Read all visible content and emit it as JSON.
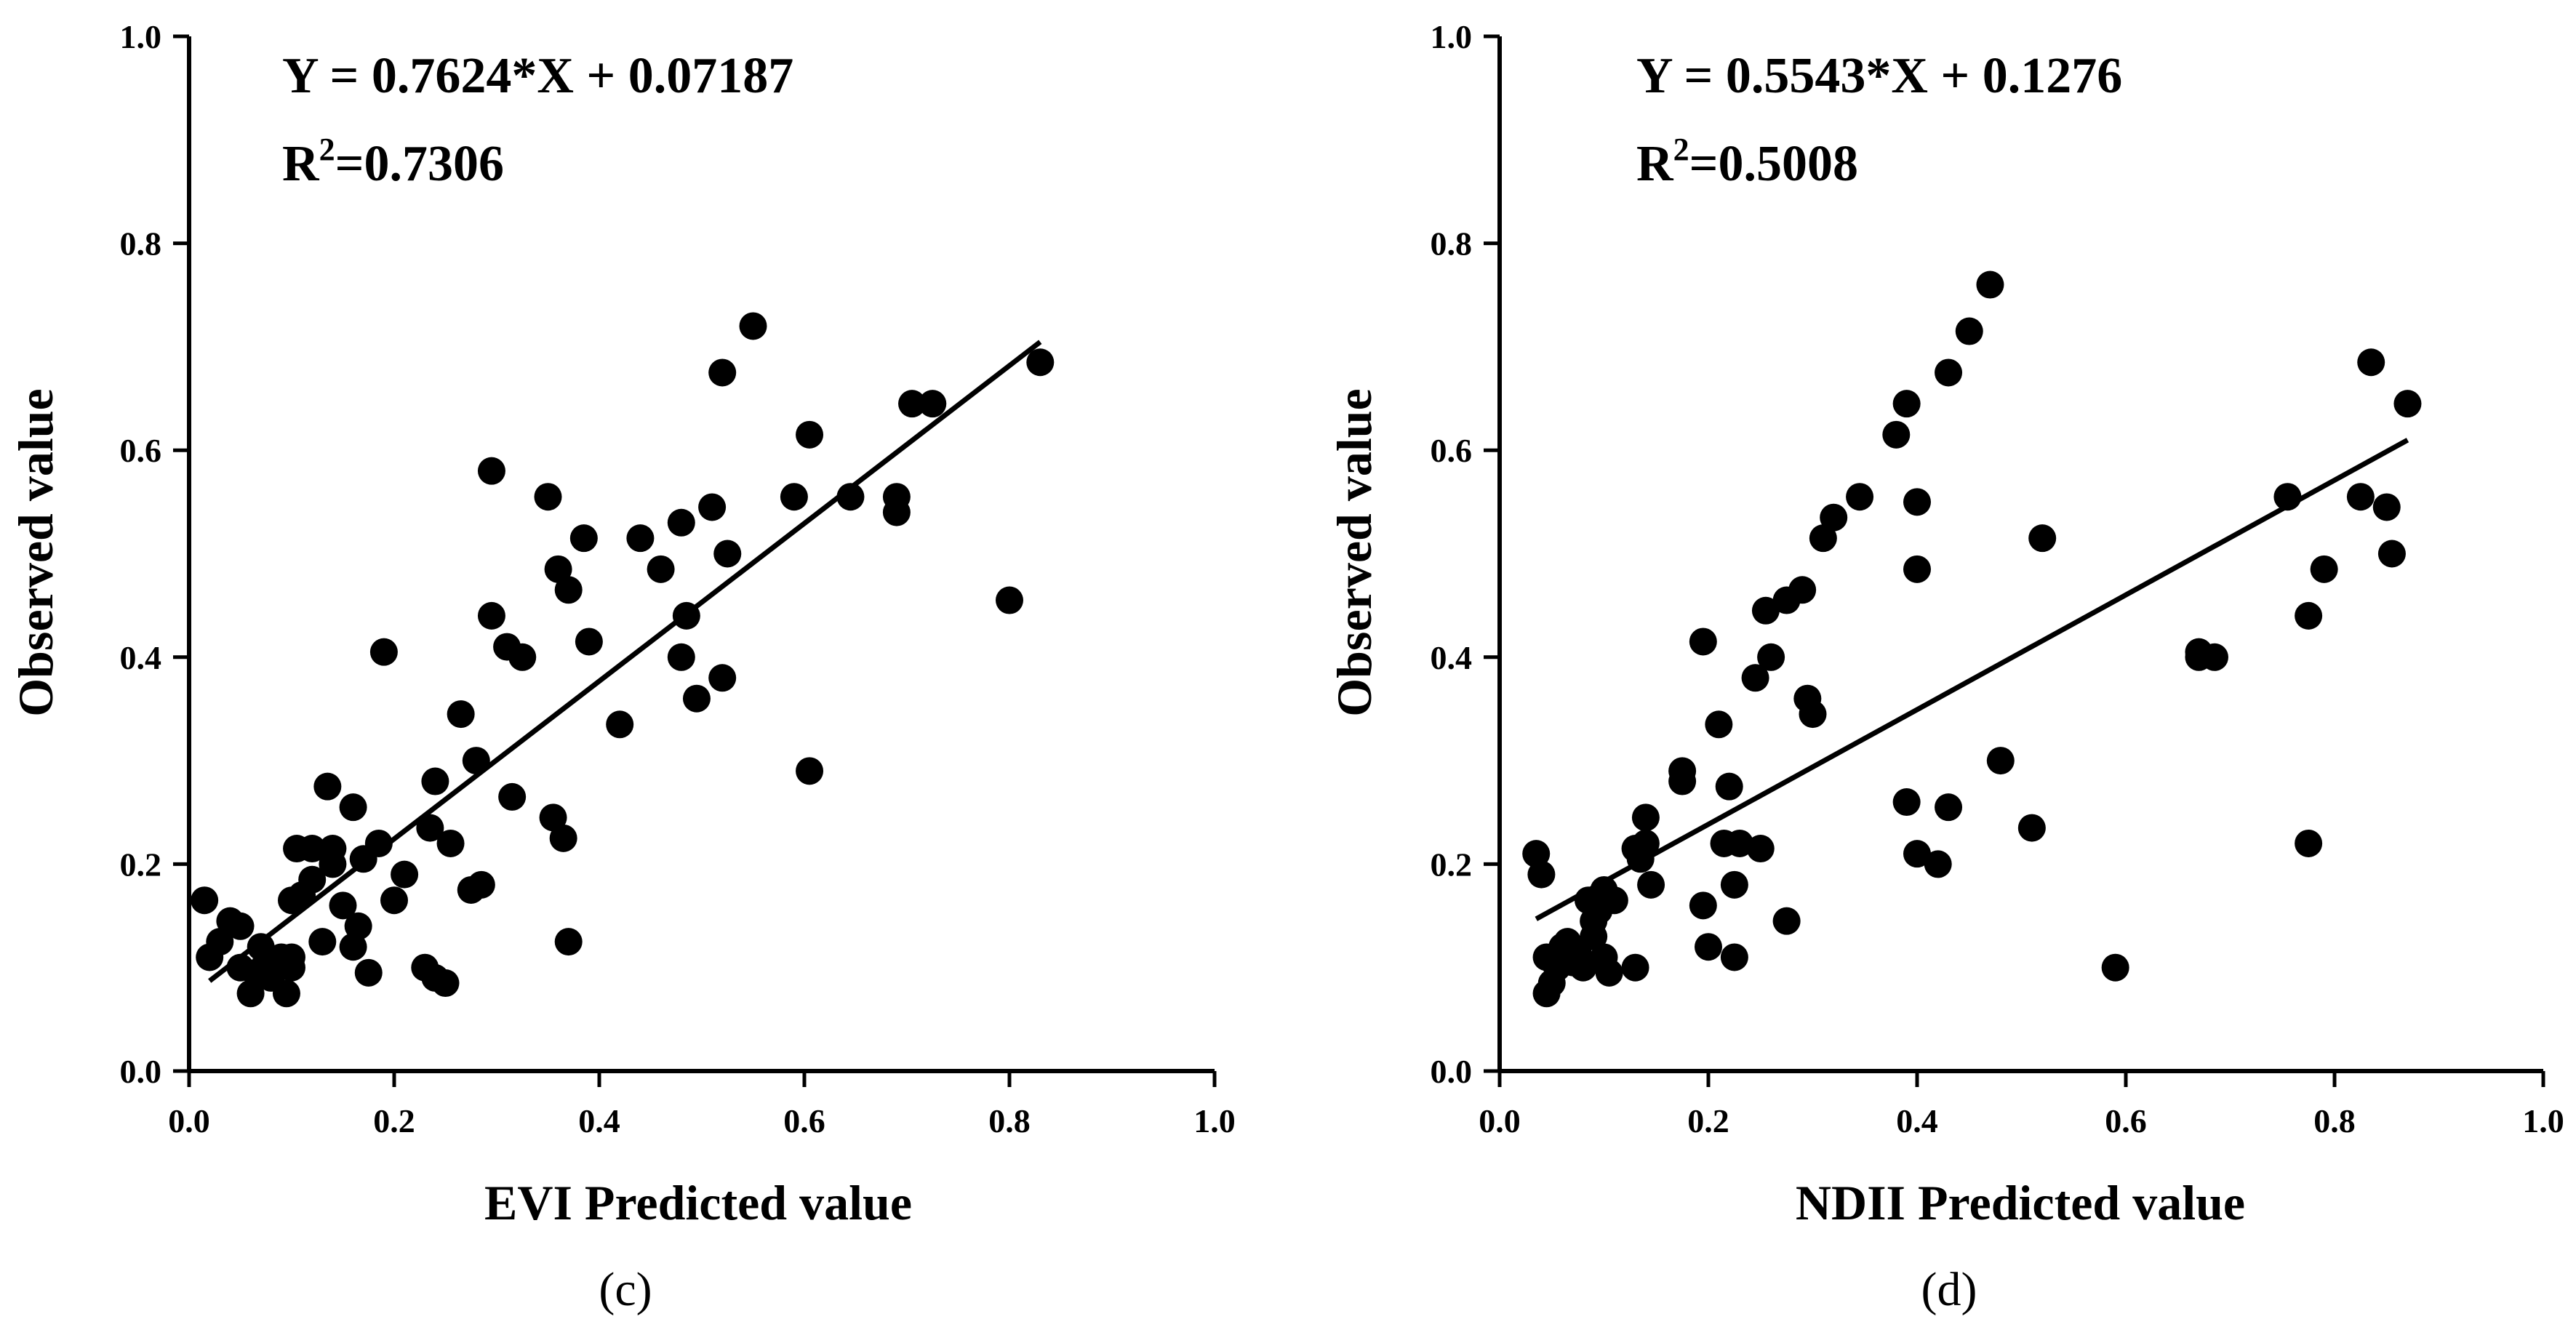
{
  "chart_data": [
    {
      "type": "scatter",
      "panel_label": "(c)",
      "xlabel": "EVI Predicted value",
      "ylabel": "Observed value",
      "xlim": [
        0.0,
        1.0
      ],
      "ylim": [
        0.0,
        1.0
      ],
      "x_ticks": [
        "0.0",
        "0.2",
        "0.4",
        "0.6",
        "0.8",
        "1.0"
      ],
      "y_ticks": [
        "0.0",
        "0.2",
        "0.4",
        "0.6",
        "0.8",
        "1.0"
      ],
      "grid": false,
      "equation": "Y = 0.7624*X + 0.07187",
      "r2_prefix": "R",
      "r2_sup": "2",
      "r2_value": "=0.7306",
      "fit": {
        "slope": 0.7624,
        "intercept": 0.07187,
        "x_range": [
          0.02,
          0.83
        ]
      },
      "points": [
        [
          0.015,
          0.165
        ],
        [
          0.02,
          0.11
        ],
        [
          0.03,
          0.125
        ],
        [
          0.04,
          0.145
        ],
        [
          0.05,
          0.14
        ],
        [
          0.05,
          0.1
        ],
        [
          0.06,
          0.075
        ],
        [
          0.065,
          0.095
        ],
        [
          0.07,
          0.12
        ],
        [
          0.075,
          0.105
        ],
        [
          0.08,
          0.09
        ],
        [
          0.09,
          0.11
        ],
        [
          0.095,
          0.075
        ],
        [
          0.1,
          0.1
        ],
        [
          0.1,
          0.11
        ],
        [
          0.1,
          0.165
        ],
        [
          0.105,
          0.215
        ],
        [
          0.11,
          0.17
        ],
        [
          0.12,
          0.185
        ],
        [
          0.12,
          0.215
        ],
        [
          0.13,
          0.125
        ],
        [
          0.135,
          0.275
        ],
        [
          0.14,
          0.2
        ],
        [
          0.14,
          0.215
        ],
        [
          0.15,
          0.16
        ],
        [
          0.16,
          0.12
        ],
        [
          0.16,
          0.255
        ],
        [
          0.165,
          0.14
        ],
        [
          0.17,
          0.205
        ],
        [
          0.175,
          0.095
        ],
        [
          0.185,
          0.22
        ],
        [
          0.19,
          0.405
        ],
        [
          0.2,
          0.165
        ],
        [
          0.21,
          0.19
        ],
        [
          0.23,
          0.1
        ],
        [
          0.235,
          0.235
        ],
        [
          0.24,
          0.09
        ],
        [
          0.24,
          0.28
        ],
        [
          0.25,
          0.085
        ],
        [
          0.255,
          0.22
        ],
        [
          0.265,
          0.345
        ],
        [
          0.275,
          0.175
        ],
        [
          0.28,
          0.3
        ],
        [
          0.285,
          0.18
        ],
        [
          0.295,
          0.44
        ],
        [
          0.295,
          0.58
        ],
        [
          0.31,
          0.41
        ],
        [
          0.315,
          0.265
        ],
        [
          0.325,
          0.4
        ],
        [
          0.35,
          0.555
        ],
        [
          0.355,
          0.245
        ],
        [
          0.36,
          0.485
        ],
        [
          0.365,
          0.225
        ],
        [
          0.37,
          0.465
        ],
        [
          0.37,
          0.125
        ],
        [
          0.385,
          0.515
        ],
        [
          0.39,
          0.415
        ],
        [
          0.42,
          0.335
        ],
        [
          0.44,
          0.515
        ],
        [
          0.46,
          0.485
        ],
        [
          0.48,
          0.53
        ],
        [
          0.48,
          0.4
        ],
        [
          0.485,
          0.44
        ],
        [
          0.495,
          0.36
        ],
        [
          0.51,
          0.545
        ],
        [
          0.52,
          0.38
        ],
        [
          0.52,
          0.675
        ],
        [
          0.525,
          0.5
        ],
        [
          0.55,
          0.72
        ],
        [
          0.59,
          0.555
        ],
        [
          0.605,
          0.615
        ],
        [
          0.605,
          0.29
        ],
        [
          0.645,
          0.555
        ],
        [
          0.69,
          0.555
        ],
        [
          0.69,
          0.54
        ],
        [
          0.705,
          0.645
        ],
        [
          0.725,
          0.645
        ],
        [
          0.8,
          0.455
        ],
        [
          0.83,
          0.685
        ]
      ]
    },
    {
      "type": "scatter",
      "panel_label": "(d)",
      "xlabel": "NDII Predicted value",
      "ylabel": "Observed value",
      "xlim": [
        0.0,
        1.0
      ],
      "ylim": [
        0.0,
        1.0
      ],
      "x_ticks": [
        "0.0",
        "0.2",
        "0.4",
        "0.6",
        "0.8",
        "1.0"
      ],
      "y_ticks": [
        "0.0",
        "0.2",
        "0.4",
        "0.6",
        "0.8",
        "1.0"
      ],
      "grid": false,
      "equation": "Y = 0.5543*X + 0.1276",
      "r2_prefix": "R",
      "r2_sup": "2",
      "r2_value": "=0.5008",
      "fit": {
        "slope": 0.5543,
        "intercept": 0.1276,
        "x_range": [
          0.035,
          0.87
        ]
      },
      "points": [
        [
          0.035,
          0.21
        ],
        [
          0.04,
          0.19
        ],
        [
          0.045,
          0.11
        ],
        [
          0.045,
          0.075
        ],
        [
          0.05,
          0.085
        ],
        [
          0.055,
          0.1
        ],
        [
          0.06,
          0.12
        ],
        [
          0.065,
          0.125
        ],
        [
          0.07,
          0.105
        ],
        [
          0.075,
          0.115
        ],
        [
          0.08,
          0.1
        ],
        [
          0.085,
          0.165
        ],
        [
          0.09,
          0.13
        ],
        [
          0.09,
          0.145
        ],
        [
          0.095,
          0.155
        ],
        [
          0.1,
          0.11
        ],
        [
          0.1,
          0.175
        ],
        [
          0.105,
          0.095
        ],
        [
          0.11,
          0.165
        ],
        [
          0.13,
          0.215
        ],
        [
          0.13,
          0.1
        ],
        [
          0.135,
          0.205
        ],
        [
          0.14,
          0.22
        ],
        [
          0.14,
          0.245
        ],
        [
          0.145,
          0.18
        ],
        [
          0.175,
          0.29
        ],
        [
          0.175,
          0.28
        ],
        [
          0.195,
          0.415
        ],
        [
          0.195,
          0.16
        ],
        [
          0.2,
          0.12
        ],
        [
          0.21,
          0.335
        ],
        [
          0.215,
          0.22
        ],
        [
          0.22,
          0.275
        ],
        [
          0.225,
          0.18
        ],
        [
          0.225,
          0.11
        ],
        [
          0.23,
          0.22
        ],
        [
          0.245,
          0.38
        ],
        [
          0.25,
          0.215
        ],
        [
          0.255,
          0.445
        ],
        [
          0.26,
          0.4
        ],
        [
          0.275,
          0.145
        ],
        [
          0.275,
          0.455
        ],
        [
          0.29,
          0.465
        ],
        [
          0.295,
          0.36
        ],
        [
          0.3,
          0.345
        ],
        [
          0.31,
          0.515
        ],
        [
          0.32,
          0.535
        ],
        [
          0.345,
          0.555
        ],
        [
          0.38,
          0.615
        ],
        [
          0.39,
          0.645
        ],
        [
          0.39,
          0.26
        ],
        [
          0.4,
          0.55
        ],
        [
          0.4,
          0.485
        ],
        [
          0.4,
          0.21
        ],
        [
          0.42,
          0.2
        ],
        [
          0.43,
          0.255
        ],
        [
          0.43,
          0.675
        ],
        [
          0.45,
          0.715
        ],
        [
          0.47,
          0.76
        ],
        [
          0.48,
          0.3
        ],
        [
          0.51,
          0.235
        ],
        [
          0.52,
          0.515
        ],
        [
          0.59,
          0.1
        ],
        [
          0.67,
          0.405
        ],
        [
          0.67,
          0.4
        ],
        [
          0.685,
          0.4
        ],
        [
          0.755,
          0.555
        ],
        [
          0.775,
          0.22
        ],
        [
          0.775,
          0.44
        ],
        [
          0.79,
          0.485
        ],
        [
          0.825,
          0.555
        ],
        [
          0.835,
          0.685
        ],
        [
          0.85,
          0.545
        ],
        [
          0.855,
          0.5
        ],
        [
          0.87,
          0.645
        ]
      ]
    }
  ]
}
